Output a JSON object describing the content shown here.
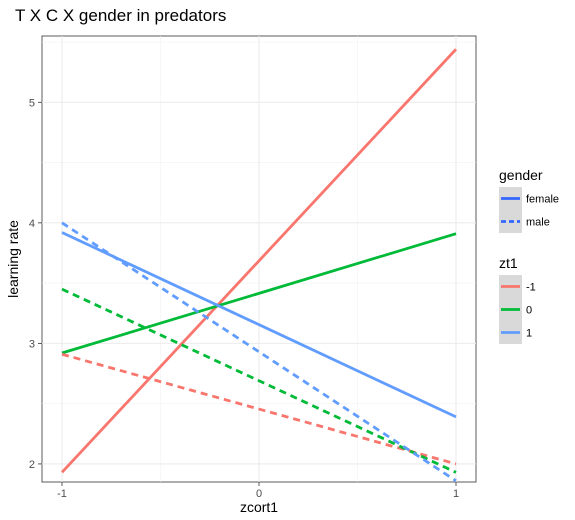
{
  "chart_data": {
    "type": "line",
    "title": "T X C X gender in predators",
    "xlabel": "zcort1",
    "ylabel": "learning rate",
    "xlim": [
      -1.0,
      1.0
    ],
    "ylim": [
      1.85,
      5.55
    ],
    "xticks": [
      -1,
      0,
      1
    ],
    "xtick_labels": [
      "-1",
      "0",
      "1"
    ],
    "yticks": [
      2,
      3,
      4,
      5
    ],
    "ytick_labels": [
      "2",
      "3",
      "4",
      "5"
    ],
    "grid": true,
    "legend_position": "right",
    "series": [
      {
        "zt1": "-1",
        "gender": "female",
        "linetype": "solid",
        "color": "#F8766D",
        "x": [
          -1,
          1
        ],
        "y": [
          1.93,
          5.44
        ]
      },
      {
        "zt1": "0",
        "gender": "female",
        "linetype": "solid",
        "color": "#00BA38",
        "x": [
          -1,
          1
        ],
        "y": [
          2.92,
          3.91
        ]
      },
      {
        "zt1": "1",
        "gender": "female",
        "linetype": "solid",
        "color": "#619CFF",
        "x": [
          -1,
          1
        ],
        "y": [
          3.92,
          2.39
        ]
      },
      {
        "zt1": "-1",
        "gender": "male",
        "linetype": "dashed",
        "color": "#F8766D",
        "x": [
          -1,
          1
        ],
        "y": [
          2.91,
          2.0
        ]
      },
      {
        "zt1": "0",
        "gender": "male",
        "linetype": "dashed",
        "color": "#00BA38",
        "x": [
          -1,
          1
        ],
        "y": [
          3.45,
          1.93
        ]
      },
      {
        "zt1": "1",
        "gender": "male",
        "linetype": "dashed",
        "color": "#619CFF",
        "x": [
          -1,
          1
        ],
        "y": [
          4.0,
          1.86
        ]
      }
    ],
    "legends": [
      {
        "title": "gender",
        "items": [
          {
            "label": "female",
            "linetype": "solid",
            "color": "#3366FF"
          },
          {
            "label": "male",
            "linetype": "dashed",
            "color": "#3366FF"
          }
        ]
      },
      {
        "title": "zt1",
        "items": [
          {
            "label": "-1",
            "linetype": "solid",
            "color": "#F8766D"
          },
          {
            "label": "0",
            "linetype": "solid",
            "color": "#00BA38"
          },
          {
            "label": "1",
            "linetype": "solid",
            "color": "#619CFF"
          }
        ]
      }
    ]
  }
}
